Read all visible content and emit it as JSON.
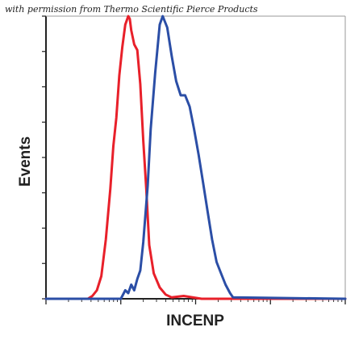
{
  "credit_text": "with permission from Thermo Scientific Pierce Products",
  "chart_data": {
    "type": "line",
    "xlabel": "INCENP",
    "ylabel": "Events",
    "xlim": [
      0,
      100
    ],
    "ylim": [
      0,
      100
    ],
    "x_scale": "log",
    "grid": false,
    "legend": "none",
    "colors": {
      "control": "#e8202a",
      "sample": "#2b4ea6",
      "axis": "#222222"
    },
    "series": [
      {
        "color": "#e8202a",
        "x": [
          0,
          14,
          15.5,
          17,
          18.5,
          20,
          21.5,
          22.5,
          23.5,
          24.5,
          25.5,
          26.5,
          27.5,
          28,
          28.5,
          29.5,
          30.5,
          31.5,
          32.5,
          33.5,
          34.5,
          36,
          38,
          40,
          42,
          46,
          52,
          100
        ],
        "y": [
          0,
          0,
          1,
          3,
          8,
          21,
          39,
          54,
          64,
          79,
          89,
          97,
          100,
          99,
          95,
          90,
          88,
          76,
          56,
          39,
          19,
          9,
          4,
          1.5,
          0.5,
          1,
          0,
          0
        ]
      },
      {
        "color": "#2b4ea6",
        "x": [
          0,
          25,
          26.5,
          27.5,
          28.5,
          29.5,
          30.5,
          31.5,
          32.5,
          34,
          35,
          36.5,
          38,
          39,
          40.5,
          42,
          43.5,
          45,
          46.5,
          48,
          49.5,
          51,
          52.5,
          54,
          55.5,
          57,
          58.5,
          60,
          61.5,
          62.5,
          100
        ],
        "y": [
          0,
          0,
          3,
          2,
          5,
          3,
          7,
          10,
          20,
          40,
          60,
          80,
          97,
          100,
          96,
          86,
          77,
          72,
          72,
          68,
          60,
          51,
          41,
          31,
          21,
          13,
          9,
          5,
          2,
          0.5,
          0
        ]
      }
    ]
  }
}
